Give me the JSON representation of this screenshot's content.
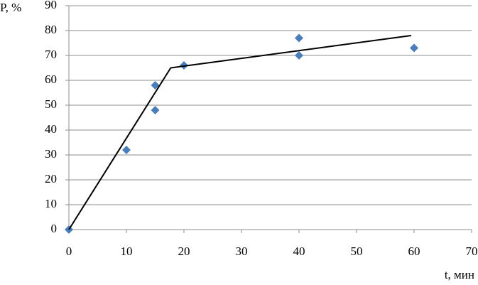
{
  "chart_data": {
    "type": "scatter",
    "ylabel": "P, %",
    "xlabel": "t, мин",
    "xlim": [
      0,
      70
    ],
    "xticks": [
      0,
      10,
      20,
      30,
      40,
      50,
      60,
      70
    ],
    "ylim": [
      0,
      90
    ],
    "yticks": [
      0,
      10,
      20,
      30,
      40,
      50,
      60,
      70,
      80,
      90
    ],
    "grid": true,
    "series": [
      {
        "mode": "markers",
        "color": "#4a7ebb",
        "x": [
          0,
          10,
          15,
          15,
          20,
          40,
          40,
          60
        ],
        "values": [
          0,
          32,
          58,
          48,
          66,
          77,
          70,
          73
        ]
      },
      {
        "mode": "line",
        "color": "#000000",
        "x": [
          0,
          17.7,
          59.5
        ],
        "values": [
          0,
          65,
          78
        ]
      }
    ]
  }
}
